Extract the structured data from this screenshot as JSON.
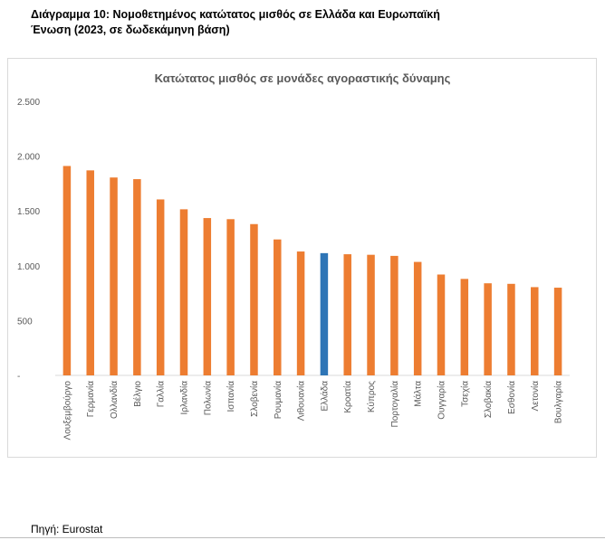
{
  "page": {
    "title_line1": "Διάγραμμα 10: Νομοθετημένος κατώτατος μισθός σε Ελλάδα και Ευρωπαϊκή",
    "title_line2": "Ένωση  (2023, σε δωδεκάμηνη βάση)",
    "source": "Πηγή: Eurostat"
  },
  "colors": {
    "bar": "#ED7D31",
    "highlight": "#2E75B6",
    "grid": "#d9d9d9",
    "text": "#595959"
  },
  "chart_data": {
    "type": "bar",
    "title": "Κατώτατος μισθός σε μονάδες αγοραστικής δύναμης",
    "xlabel": "",
    "ylabel": "",
    "ylim": [
      0,
      2500
    ],
    "yticks": [
      {
        "value": 0,
        "label": "-"
      },
      {
        "value": 500,
        "label": "500"
      },
      {
        "value": 1000,
        "label": "1.000"
      },
      {
        "value": 1500,
        "label": "1.500"
      },
      {
        "value": 2000,
        "label": "2.000"
      },
      {
        "value": 2500,
        "label": "2.500"
      }
    ],
    "grid": false,
    "categories": [
      "Λουξεμβούργο",
      "Γερμανία",
      "Ολλανδία",
      "Βέλγιο",
      "Γαλλία",
      "Ιρλανδία",
      "Πολωνία",
      "Ισπανία",
      "Σλοβενία",
      "Ρουμανία",
      "Λιθουανία",
      "Ελλάδα",
      "Κροατία",
      "Κύπρος",
      "Πορτογαλία",
      "Μάλτα",
      "Ουγγαρία",
      "Τσεχία",
      "Σλοβακία",
      "Εσθονία",
      "Λετονία",
      "Βουλγαρία"
    ],
    "values": [
      1910,
      1870,
      1805,
      1790,
      1605,
      1515,
      1435,
      1425,
      1380,
      1240,
      1130,
      1115,
      1105,
      1100,
      1090,
      1035,
      920,
      880,
      840,
      835,
      805,
      800
    ],
    "highlight_category": "Ελλάδα"
  }
}
